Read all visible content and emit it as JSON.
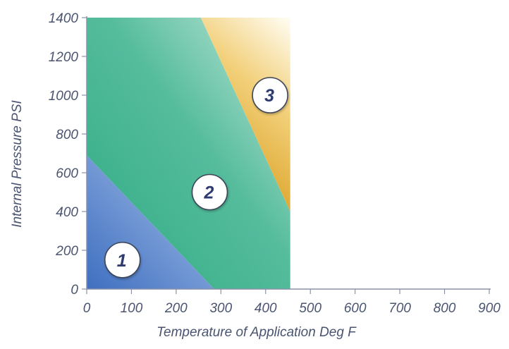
{
  "chart_data": {
    "type": "area",
    "xlabel": "Temperature of Application Deg F",
    "ylabel": "Internal Pressure PSI",
    "xlim": [
      0,
      900
    ],
    "ylim": [
      0,
      1400
    ],
    "x_ticks": [
      "0",
      "100",
      "200",
      "300",
      "400",
      "500",
      "600",
      "700",
      "800",
      "900"
    ],
    "y_ticks": [
      "0",
      "200",
      "400",
      "600",
      "800",
      "1000",
      "1200",
      "1400"
    ],
    "grid": false,
    "regions": [
      {
        "label": "1",
        "color": "#5a86c8",
        "polygon": [
          [
            0,
            0
          ],
          [
            285,
            0
          ],
          [
            0,
            690
          ]
        ],
        "label_at": [
          80,
          150
        ]
      },
      {
        "label": "2",
        "color": "#4fb89a",
        "polygon": [
          [
            0,
            690
          ],
          [
            285,
            0
          ],
          [
            455,
            0
          ],
          [
            455,
            400
          ],
          [
            255,
            1400
          ],
          [
            0,
            1400
          ]
        ],
        "label_at": [
          275,
          500
        ]
      },
      {
        "label": "3",
        "color": "#e8c060",
        "polygon": [
          [
            255,
            1400
          ],
          [
            455,
            1400
          ],
          [
            455,
            400
          ]
        ],
        "label_at": [
          410,
          1000
        ]
      }
    ]
  }
}
